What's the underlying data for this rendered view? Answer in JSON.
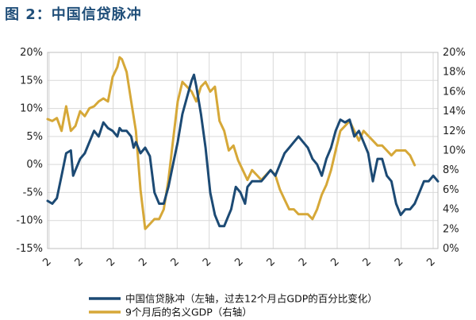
{
  "page": {
    "title": "图 2：中国信贷脉冲"
  },
  "colors": {
    "credit": "#1c4a74",
    "gdp": "#d6a838",
    "grid": "#d9d9d9",
    "text": "#222222"
  },
  "chart_data": {
    "type": "line",
    "title": "图 2：中国信贷脉冲",
    "legend_placement": "bottom",
    "grid": true,
    "x_tick_labels": [
      "2",
      "2",
      "2",
      "2",
      "2",
      "2",
      "2",
      "2",
      "2",
      "2",
      "2",
      "2",
      "2"
    ],
    "left_axis": {
      "ylim": [
        -15,
        20
      ],
      "ticks": [
        -15,
        -10,
        -5,
        0,
        5,
        10,
        15,
        20
      ],
      "tick_labels": [
        "-15%",
        "-10%",
        "-5%",
        "0%",
        "5%",
        "10%",
        "15%",
        "20%"
      ]
    },
    "right_axis": {
      "ylim": [
        0,
        20
      ],
      "ticks": [
        0,
        2,
        4,
        6,
        8,
        10,
        12,
        14,
        16,
        18,
        20
      ],
      "tick_labels": [
        "0%",
        "2%",
        "4%",
        "6%",
        "8%",
        "10%",
        "12%",
        "14%",
        "16%",
        "18%",
        "20%"
      ]
    },
    "series": [
      {
        "name": "中国信贷脉冲（左轴，过去12个月占GDP的百分比变化）",
        "axis": "left",
        "color": "#1c4a74",
        "values": [
          [
            0,
            -6.5
          ],
          [
            2,
            -7
          ],
          [
            4,
            -6
          ],
          [
            6,
            -2
          ],
          [
            8,
            2
          ],
          [
            10,
            2.5
          ],
          [
            11,
            -2
          ],
          [
            12,
            -1
          ],
          [
            14,
            1
          ],
          [
            16,
            2
          ],
          [
            18,
            4
          ],
          [
            20,
            6
          ],
          [
            22,
            5
          ],
          [
            24,
            7.5
          ],
          [
            26,
            6.5
          ],
          [
            28,
            6
          ],
          [
            30,
            5
          ],
          [
            31,
            6.5
          ],
          [
            32,
            6
          ],
          [
            34,
            6
          ],
          [
            36,
            5
          ],
          [
            37,
            3
          ],
          [
            38,
            4
          ],
          [
            40,
            2
          ],
          [
            42,
            3
          ],
          [
            44,
            1.5
          ],
          [
            46,
            -5
          ],
          [
            48,
            -7
          ],
          [
            50,
            -7
          ],
          [
            52,
            -4
          ],
          [
            54,
            0
          ],
          [
            56,
            4
          ],
          [
            58,
            9
          ],
          [
            60,
            12
          ],
          [
            62,
            15
          ],
          [
            63,
            16
          ],
          [
            64,
            14
          ],
          [
            66,
            9
          ],
          [
            68,
            3
          ],
          [
            70,
            -5
          ],
          [
            72,
            -9
          ],
          [
            74,
            -11
          ],
          [
            76,
            -11
          ],
          [
            78,
            -9
          ],
          [
            79,
            -8
          ],
          [
            81,
            -4
          ],
          [
            83,
            -5
          ],
          [
            85,
            -7
          ],
          [
            86,
            -4
          ],
          [
            88,
            -3
          ],
          [
            90,
            -3
          ],
          [
            92,
            -3
          ],
          [
            94,
            -2
          ],
          [
            96,
            -1
          ],
          [
            98,
            -2
          ],
          [
            100,
            0
          ],
          [
            102,
            2
          ],
          [
            104,
            3
          ],
          [
            106,
            4
          ],
          [
            108,
            5
          ],
          [
            110,
            4
          ],
          [
            112,
            3
          ],
          [
            114,
            1
          ],
          [
            116,
            0
          ],
          [
            118,
            -2
          ],
          [
            120,
            1
          ],
          [
            122,
            3
          ],
          [
            124,
            6
          ],
          [
            126,
            8
          ],
          [
            128,
            7.5
          ],
          [
            130,
            8
          ],
          [
            132,
            5
          ],
          [
            134,
            6
          ],
          [
            136,
            4
          ],
          [
            138,
            2
          ],
          [
            140,
            -3
          ],
          [
            142,
            1
          ],
          [
            144,
            1
          ],
          [
            146,
            -2
          ],
          [
            148,
            -3
          ],
          [
            150,
            -7
          ],
          [
            152,
            -9
          ],
          [
            154,
            -8
          ],
          [
            156,
            -8
          ],
          [
            158,
            -7
          ],
          [
            160,
            -5
          ],
          [
            162,
            -3
          ],
          [
            164,
            -3
          ],
          [
            166,
            -2
          ],
          [
            168,
            -3
          ]
        ]
      },
      {
        "name": "9个月后的名义GDP（右轴）",
        "axis": "right",
        "color": "#d6a838",
        "values": [
          [
            0,
            13.2
          ],
          [
            2,
            13
          ],
          [
            4,
            13.3
          ],
          [
            6,
            12
          ],
          [
            8,
            14.5
          ],
          [
            10,
            12
          ],
          [
            12,
            12.5
          ],
          [
            14,
            14
          ],
          [
            16,
            13.5
          ],
          [
            18,
            14.3
          ],
          [
            20,
            14.5
          ],
          [
            22,
            15
          ],
          [
            24,
            15.3
          ],
          [
            26,
            15
          ],
          [
            28,
            17.5
          ],
          [
            30,
            18.5
          ],
          [
            31,
            19.5
          ],
          [
            32,
            19.3
          ],
          [
            34,
            18
          ],
          [
            36,
            15
          ],
          [
            38,
            12
          ],
          [
            40,
            6
          ],
          [
            42,
            2
          ],
          [
            44,
            2.5
          ],
          [
            46,
            3
          ],
          [
            48,
            3
          ],
          [
            50,
            4
          ],
          [
            52,
            7
          ],
          [
            54,
            11
          ],
          [
            56,
            15
          ],
          [
            58,
            17
          ],
          [
            60,
            16.5
          ],
          [
            62,
            16
          ],
          [
            64,
            15
          ],
          [
            66,
            16.5
          ],
          [
            68,
            17
          ],
          [
            70,
            16
          ],
          [
            72,
            16.5
          ],
          [
            74,
            13
          ],
          [
            76,
            12
          ],
          [
            78,
            10
          ],
          [
            80,
            10.5
          ],
          [
            82,
            9
          ],
          [
            84,
            8
          ],
          [
            86,
            7
          ],
          [
            88,
            8
          ],
          [
            90,
            7.5
          ],
          [
            92,
            7
          ],
          [
            94,
            7.5
          ],
          [
            96,
            8
          ],
          [
            98,
            7.5
          ],
          [
            100,
            6
          ],
          [
            102,
            5
          ],
          [
            104,
            4
          ],
          [
            106,
            4
          ],
          [
            108,
            3.5
          ],
          [
            110,
            3.5
          ],
          [
            112,
            3.5
          ],
          [
            114,
            3
          ],
          [
            116,
            4
          ],
          [
            118,
            5.5
          ],
          [
            120,
            6.5
          ],
          [
            122,
            8
          ],
          [
            124,
            10
          ],
          [
            126,
            12
          ],
          [
            128,
            12.5
          ],
          [
            130,
            13
          ],
          [
            132,
            12
          ],
          [
            134,
            11
          ],
          [
            136,
            12
          ],
          [
            138,
            11.5
          ],
          [
            140,
            11
          ],
          [
            142,
            10.5
          ],
          [
            144,
            10.5
          ],
          [
            146,
            10
          ],
          [
            148,
            9.5
          ],
          [
            150,
            10
          ],
          [
            152,
            10
          ],
          [
            154,
            10
          ],
          [
            156,
            9.5
          ],
          [
            158,
            8.5
          ]
        ]
      }
    ]
  }
}
